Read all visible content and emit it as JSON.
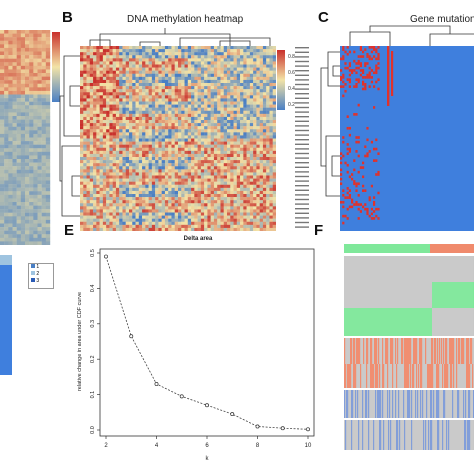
{
  "figure": {
    "panels": [
      {
        "letter": "B",
        "title": "DNA  methylation heatmap"
      },
      {
        "letter": "C",
        "title": "Gene mutation"
      },
      {
        "letter": "E",
        "title": "Delta area"
      },
      {
        "letter": "F",
        "title": ""
      }
    ],
    "colors": {
      "heat_high": "#c9302c",
      "heat_mid": "#f3e3a6",
      "heat_low": "#4a7fc4",
      "mutation_bg": "#3f7fdd",
      "mutation_hit": "#e0322b",
      "cluster_green": "#7fe89a",
      "cluster_salmon": "#f08a6c",
      "track_gray": "#c8c8c8",
      "track_blue": "#7d9bd8"
    },
    "legend_a": {
      "items": [
        "1",
        "2",
        "3"
      ]
    },
    "colorbar_b": {
      "ticks": [
        "0.8",
        "0.6",
        "0.4",
        "0.2"
      ]
    }
  },
  "chart_data": [
    {
      "type": "line",
      "title": "Delta area",
      "xlabel": "k",
      "ylabel": "relative change in area under CDF curve",
      "x": [
        2,
        3,
        4,
        5,
        6,
        7,
        8,
        9,
        10
      ],
      "y": [
        0.49,
        0.265,
        0.13,
        0.095,
        0.07,
        0.045,
        0.01,
        0.005,
        0.002
      ],
      "xlim": [
        2,
        10
      ],
      "ylim": [
        0,
        0.5
      ],
      "xticks": [
        "2",
        "4",
        "6",
        "8",
        "10"
      ],
      "yticks": [
        "0.0",
        "0.1",
        "0.2",
        "0.3",
        "0.4",
        "0.5"
      ],
      "grid": false,
      "marker": "open-circle"
    },
    {
      "type": "heatmap",
      "title": "DNA  methylation heatmap",
      "colorbar_ticks": [
        "0.8",
        "0.6",
        "0.4",
        "0.2"
      ]
    },
    {
      "type": "heatmap",
      "title": "Gene mutation"
    }
  ]
}
